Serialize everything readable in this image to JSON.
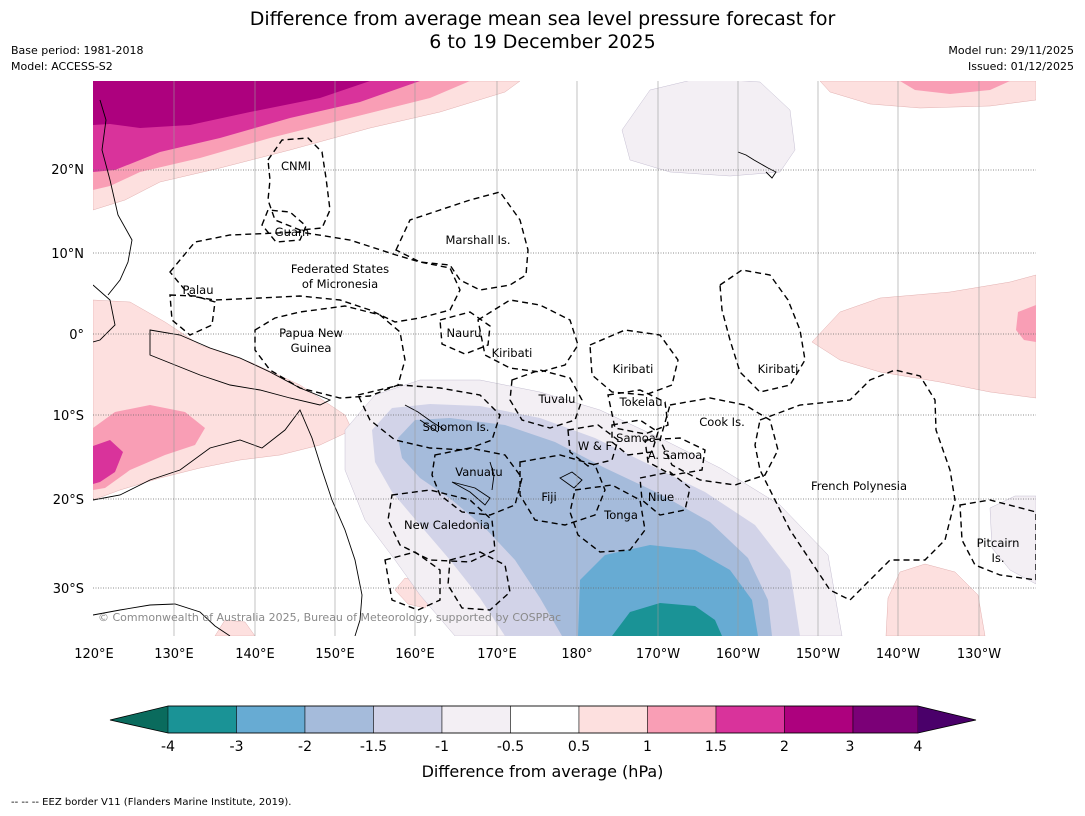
{
  "header": {
    "title_line1": "Difference from average mean sea level pressure forecast for",
    "title_line2": "6 to 19 December 2025",
    "base_period": "Base period: 1981-2018",
    "model": "Model: ACCESS-S2",
    "model_run": "Model run: 29/11/2025",
    "issued": "Issued: 01/12/2025"
  },
  "map": {
    "lat_labels": [
      "20°N",
      "10°N",
      "0°",
      "10°S",
      "20°S",
      "30°S"
    ],
    "lon_labels": [
      "120°E",
      "130°E",
      "140°E",
      "150°E",
      "160°E",
      "170°E",
      "180°",
      "170°W",
      "160°W",
      "150°W",
      "140°W",
      "130°W"
    ],
    "regions": {
      "cnmi": "CNMI",
      "guam": "Guam",
      "marshall": "Marshall Is.",
      "fsm_line1": "Federated States",
      "fsm_line2": "of Micronesia",
      "palau": "Palau",
      "png_line1": "Papua New",
      "png_line2": "Guinea",
      "nauru": "Nauru",
      "kiribati_west": "Kiribati",
      "kiribati_central": "Kiribati",
      "kiribati_east": "Kiribati",
      "tuvalu": "Tuvalu",
      "tokelau": "Tokelau",
      "solomon": "Solomon Is.",
      "wallis": "W & F",
      "samoa": "Samoa",
      "american_samoa": "A. Samoa",
      "cook": "Cook Is.",
      "vanuatu": "Vanuatu",
      "fiji": "Fiji",
      "niue": "Niue",
      "tonga": "Tonga",
      "new_caledonia": "New Caledonia",
      "french_polynesia": "French Polynesia",
      "pitcairn_line1": "Pitcairn",
      "pitcairn_line2": "Is."
    },
    "copyright": "© Commonwealth of Australia 2025, Bureau of Meteorology, supported by COSPPac"
  },
  "colorbar": {
    "ticks": [
      "-4",
      "-3",
      "-2",
      "-1.5",
      "-1",
      "-0.5",
      "0.5",
      "1",
      "1.5",
      "2",
      "3",
      "4"
    ],
    "colors": [
      "#0a6b5d",
      "#1a9396",
      "#67abd3",
      "#a5bbdb",
      "#d2d3e8",
      "#f3eff4",
      "#ffffff",
      "#fde0df",
      "#f99eb5",
      "#d9339b",
      "#ad017e",
      "#7b0077",
      "#4a006a"
    ],
    "title": "Difference from average (hPa)"
  },
  "footer": {
    "legend": "--  --  -- EEZ border V11 (Flanders Marine Institute, 2019)."
  }
}
